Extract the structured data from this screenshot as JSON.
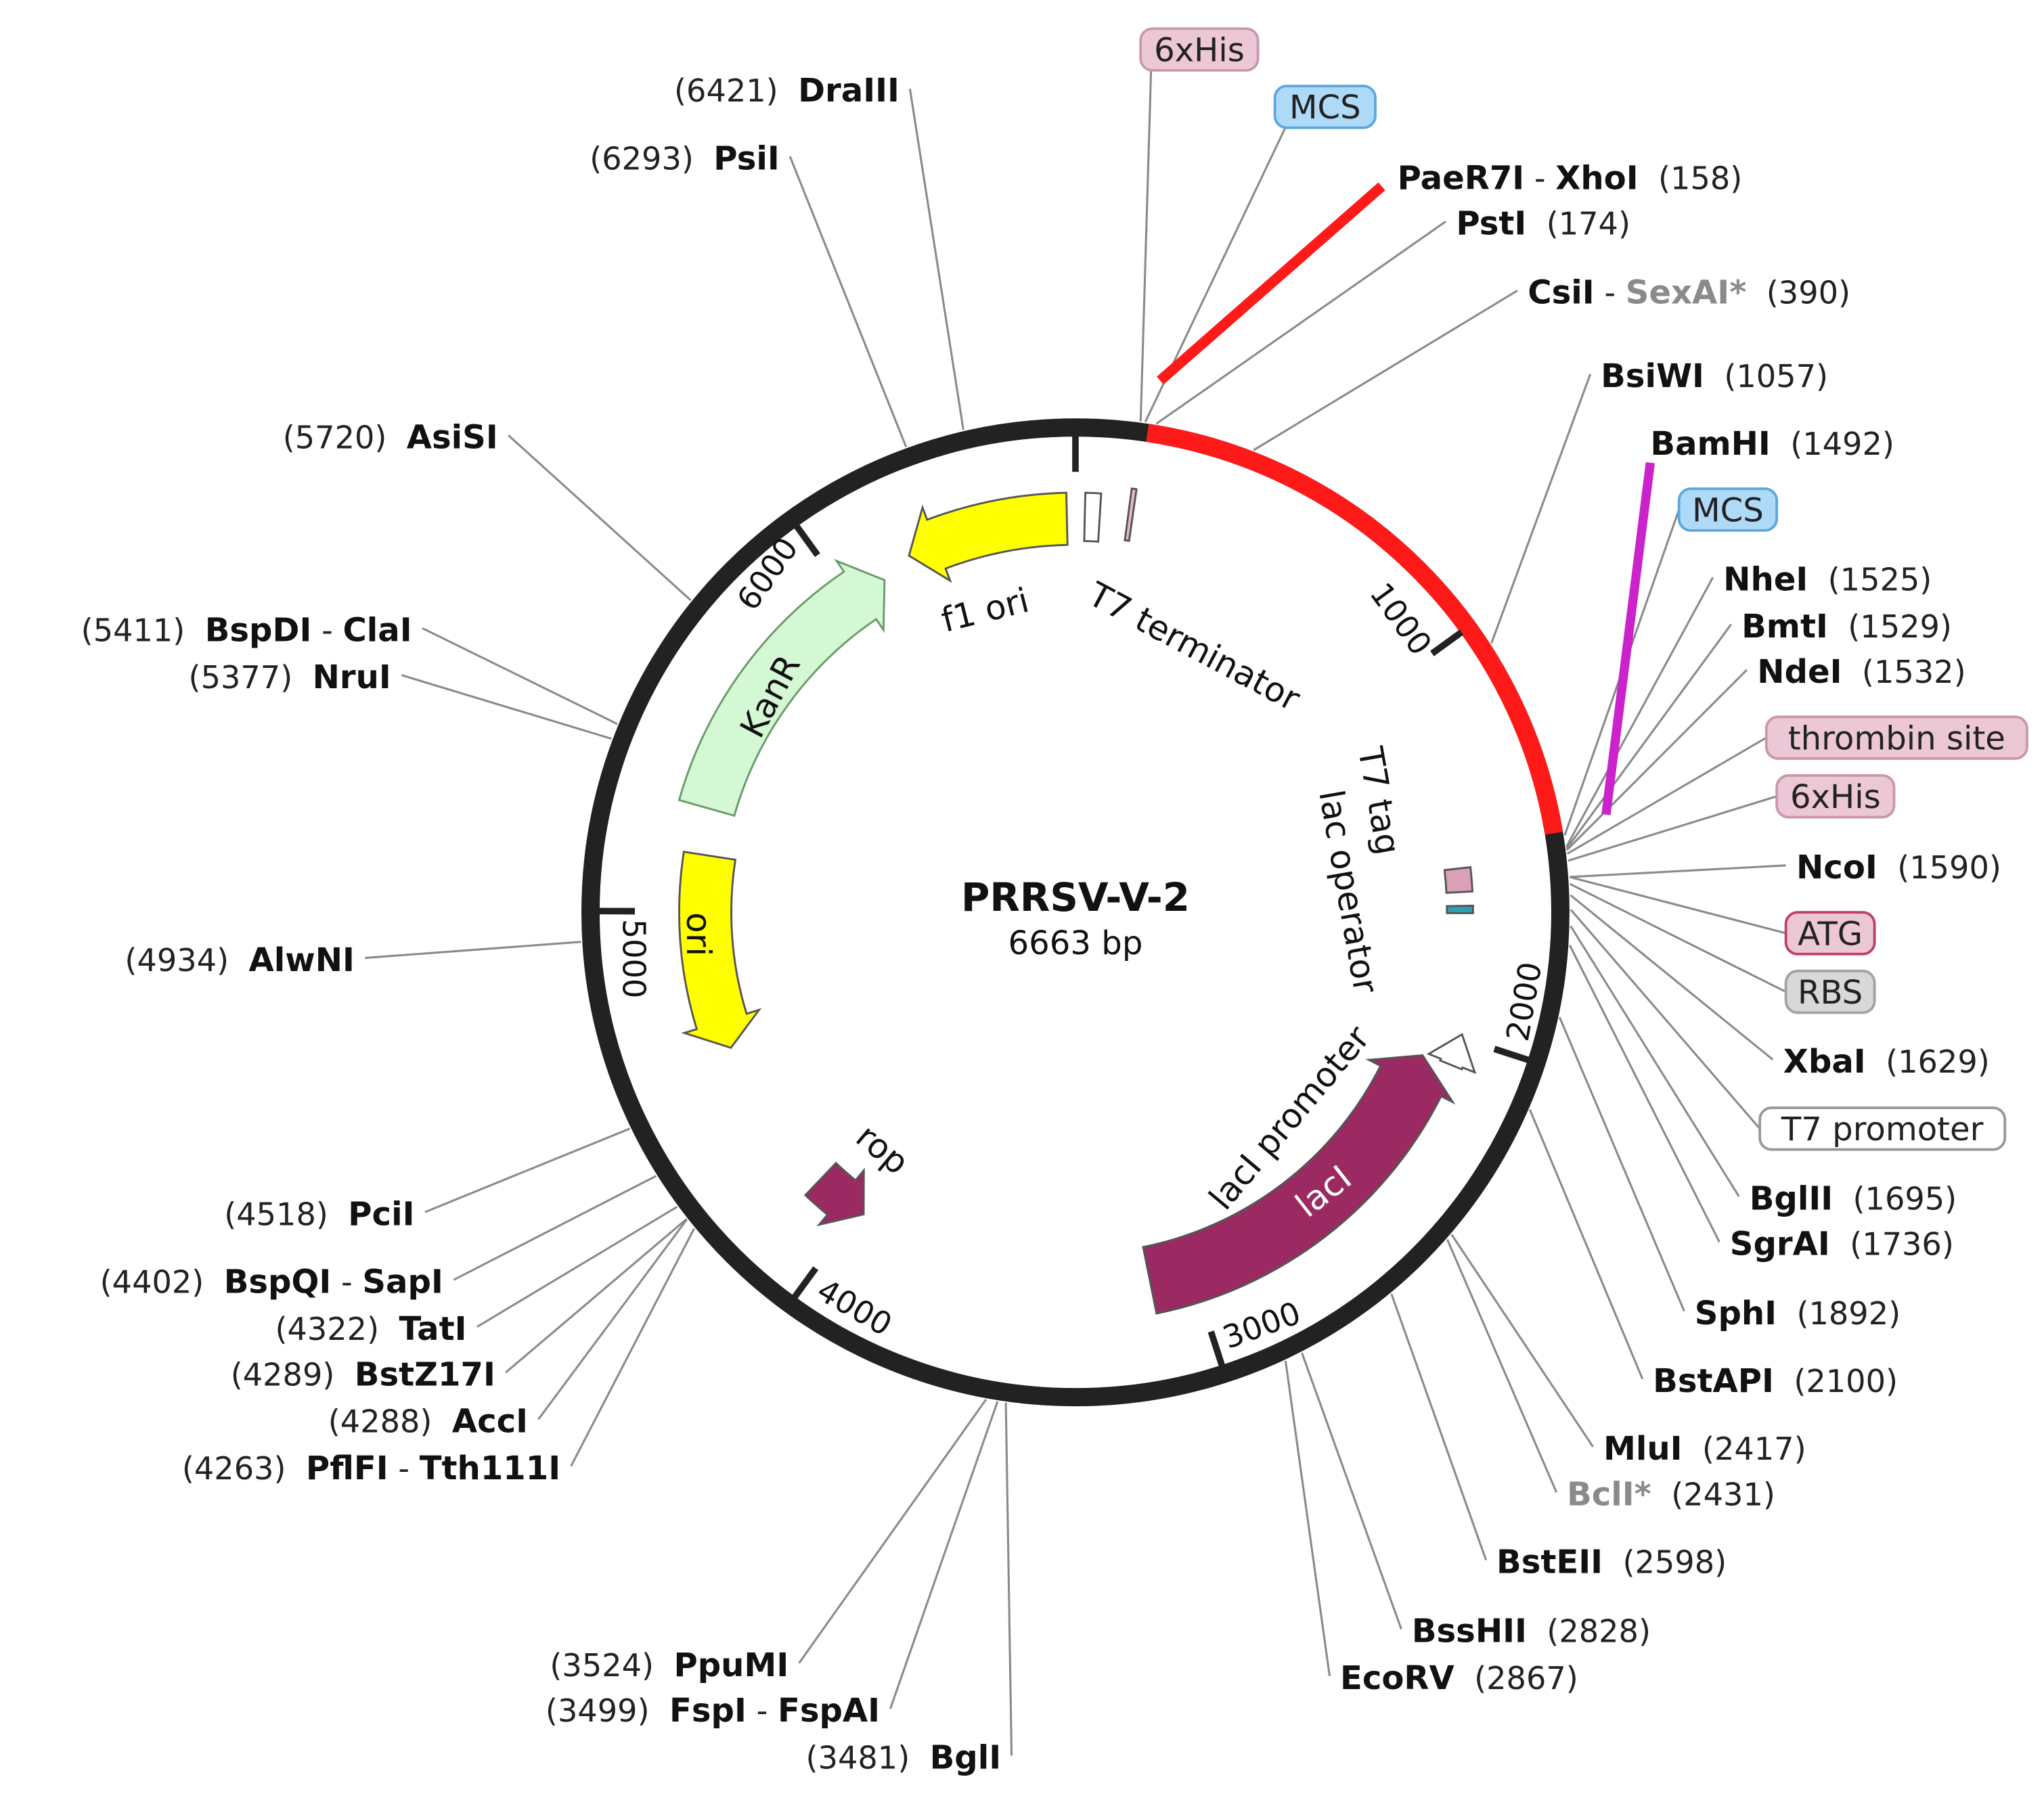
{
  "plasmid": {
    "name": "PRRSV-V-2",
    "length": "6663 bp"
  },
  "colors": {
    "backbone": "#222222",
    "insert": "#ff1a1a",
    "bamhi_highlight": "#cc22cc",
    "f1_ori": "#ffff00",
    "KanR": "#d4f7d4",
    "ori": "#ffff00",
    "rop": "#9b2a62",
    "lacI": "#9b2a62"
  },
  "ticks": [
    "1000",
    "2000",
    "3000",
    "4000",
    "5000",
    "6000"
  ],
  "features": {
    "f1_ori": "f1 ori",
    "t7_terminator": "T7 terminator",
    "kanr": "KanR",
    "ori": "ori",
    "rop": "rop",
    "laci": "lacI",
    "laci_promoter": "lacI promoter",
    "t7_tag": "T7 tag",
    "lac_operator": "lac operator"
  },
  "feature_tags": [
    {
      "label": "6xHis",
      "style": "pink"
    },
    {
      "label": "MCS",
      "style": "blue"
    },
    {
      "label": "MCS",
      "style": "blue"
    },
    {
      "label": "thrombin site",
      "style": "pink"
    },
    {
      "label": "6xHis",
      "style": "pink"
    },
    {
      "label": "ATG",
      "style": "pink-dark"
    },
    {
      "label": "RBS",
      "style": "gray"
    },
    {
      "label": "T7 promoter",
      "style": "white"
    }
  ],
  "enzymes": [
    {
      "name": "PaeR7I",
      "name2": "XhoI",
      "position": 158
    },
    {
      "name": "PstI",
      "position": 174
    },
    {
      "name": "CsiI",
      "name2": "SexAI*",
      "name2_gray": true,
      "position": 390
    },
    {
      "name": "BsiWI",
      "position": 1057
    },
    {
      "name": "BamHI",
      "position": 1492
    },
    {
      "name": "NheI",
      "position": 1525
    },
    {
      "name": "BmtI",
      "position": 1529
    },
    {
      "name": "NdeI",
      "position": 1532
    },
    {
      "name": "NcoI",
      "position": 1590
    },
    {
      "name": "XbaI",
      "position": 1629
    },
    {
      "name": "BglII",
      "position": 1695
    },
    {
      "name": "SgrAI",
      "position": 1736
    },
    {
      "name": "SphI",
      "position": 1892
    },
    {
      "name": "BstAPI",
      "position": 2100
    },
    {
      "name": "MluI",
      "position": 2417
    },
    {
      "name": "BclI*",
      "gray": true,
      "position": 2431
    },
    {
      "name": "BstEII",
      "position": 2598
    },
    {
      "name": "BssHII",
      "position": 2828
    },
    {
      "name": "EcoRV",
      "position": 2867
    },
    {
      "name": "BglI",
      "position": 3481
    },
    {
      "name": "FspI",
      "name2": "FspAI",
      "position": 3499
    },
    {
      "name": "PpuMI",
      "position": 3524
    },
    {
      "name": "PflFI",
      "name2": "Tth111I",
      "position": 4263
    },
    {
      "name": "AccI",
      "position": 4288
    },
    {
      "name": "BstZ17I",
      "position": 4289
    },
    {
      "name": "TatI",
      "position": 4322
    },
    {
      "name": "BspQI",
      "name2": "SapI",
      "position": 4402
    },
    {
      "name": "PciI",
      "position": 4518
    },
    {
      "name": "AlwNI",
      "position": 4934
    },
    {
      "name": "NruI",
      "position": 5377
    },
    {
      "name": "BspDI",
      "name2": "ClaI",
      "position": 5411
    },
    {
      "name": "AsiSI",
      "position": 5720
    },
    {
      "name": "PsiI",
      "position": 6293
    },
    {
      "name": "DraIII",
      "position": 6421
    }
  ]
}
